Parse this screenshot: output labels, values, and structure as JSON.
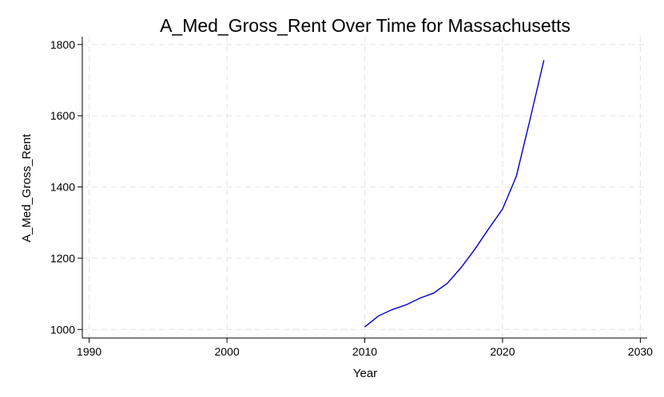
{
  "chart_data": {
    "type": "line",
    "title": "A_Med_Gross_Rent Over Time for Massachusetts",
    "xlabel": "Year",
    "ylabel": "A_Med_Gross_Rent",
    "xlim": [
      1989.5,
      2030.5
    ],
    "ylim": [
      976,
      1822
    ],
    "xticks": [
      1990,
      2000,
      2010,
      2020,
      2030
    ],
    "yticks": [
      1000,
      1200,
      1400,
      1600,
      1800
    ],
    "grid": true,
    "legend": "none",
    "series": [
      {
        "color": "#0000cc",
        "x": [
          2010,
          2011,
          2012,
          2013,
          2014,
          2015,
          2016,
          2017,
          2018,
          2019,
          2020,
          2021,
          2022,
          2023
        ],
        "y": [
          1007,
          1038,
          1056,
          1069,
          1088,
          1102,
          1130,
          1174,
          1226,
          1283,
          1338,
          1430,
          1590,
          1756
        ]
      }
    ]
  }
}
